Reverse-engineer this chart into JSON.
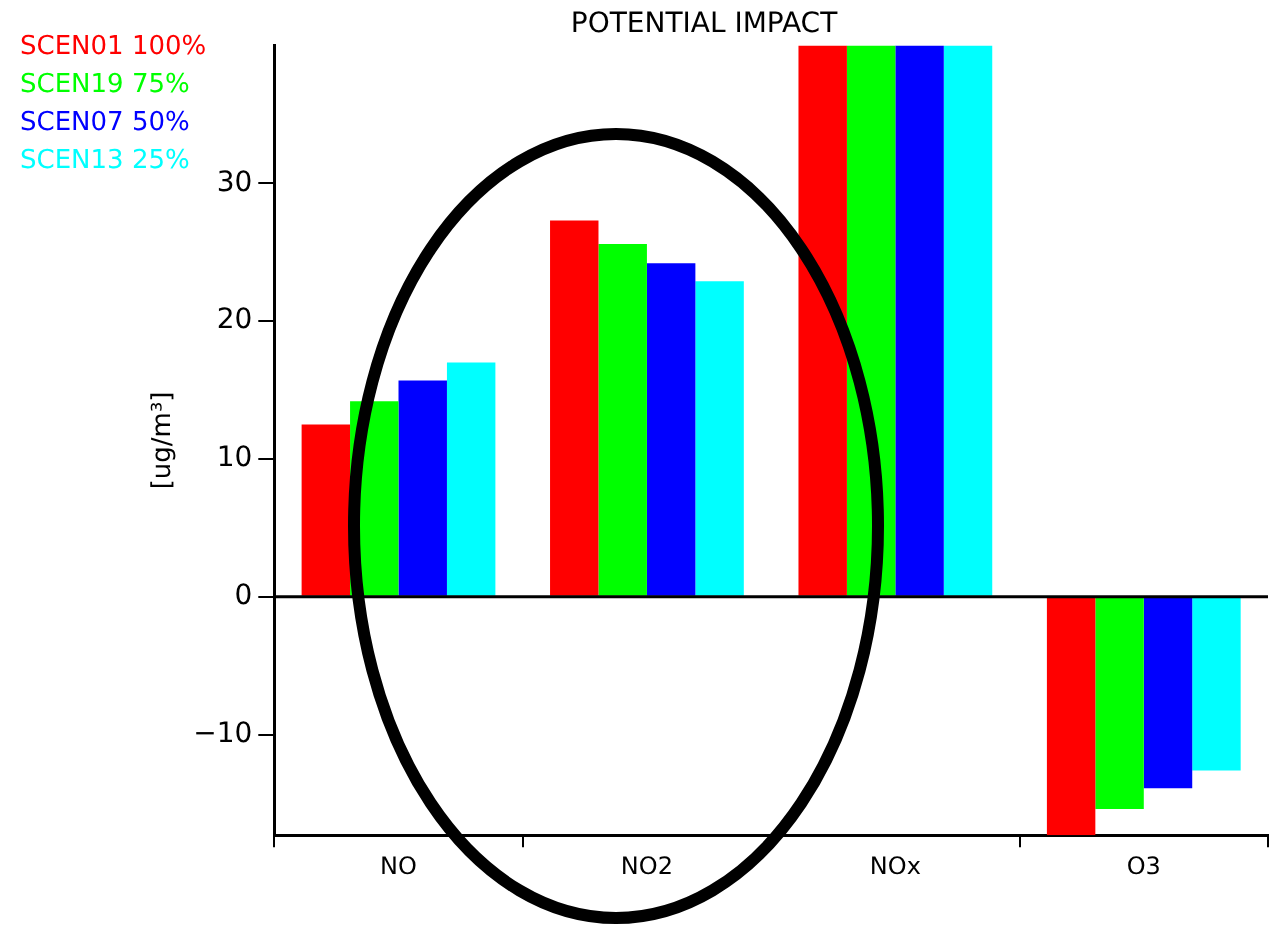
{
  "chart_data": {
    "type": "bar",
    "title": "POTENTIAL IMPACT",
    "ylabel": "[ug/m³]",
    "categories": [
      "NO",
      "NO2",
      "NOx",
      "O3"
    ],
    "series": [
      {
        "name": "SCEN01 100%",
        "color": "#ff0000",
        "values": [
          12.5,
          27.3,
          40,
          -17.3
        ]
      },
      {
        "name": "SCEN19 75%",
        "color": "#00ff00",
        "values": [
          14.2,
          25.6,
          40,
          -15.4
        ]
      },
      {
        "name": "SCEN07 50%",
        "color": "#0000ff",
        "values": [
          15.7,
          24.2,
          40,
          -13.9
        ]
      },
      {
        "name": "SCEN13 25%",
        "color": "#00ffff",
        "values": [
          17.0,
          22.9,
          40,
          -12.6
        ]
      }
    ],
    "ylim": [
      -17.3,
      40
    ],
    "yticks": [
      -10,
      0,
      10,
      20,
      30
    ],
    "grid": false,
    "legend": "top left",
    "ref_lines": [
      {
        "axis": "y",
        "value": 0
      }
    ]
  }
}
